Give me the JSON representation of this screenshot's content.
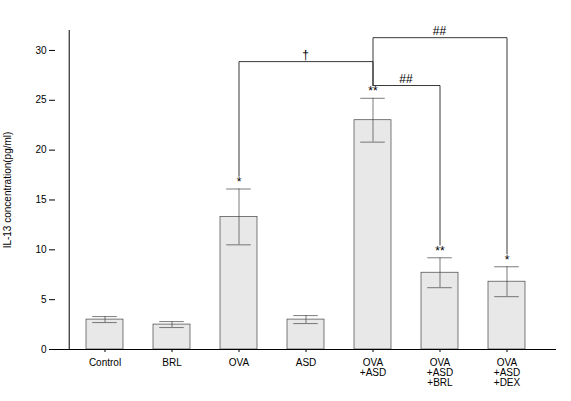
{
  "chart_data": {
    "type": "bar",
    "categories": [
      "Control",
      "BRL",
      "OVA",
      "ASD",
      "OVA\n+ASD",
      "OVA\n+ASD\n+BRL",
      "OVA\n+ASD\n+DEX"
    ],
    "values": [
      3.0,
      2.5,
      13.3,
      3.0,
      23.0,
      7.7,
      6.8
    ],
    "errors": [
      0.3,
      0.3,
      2.8,
      0.4,
      2.2,
      1.5,
      1.5
    ],
    "significance_labels": [
      null,
      null,
      "*",
      null,
      "**",
      "**",
      "*"
    ],
    "annotations": [
      {
        "text": "†",
        "from": "OVA",
        "to": "OVA\n+ASD"
      },
      {
        "text": "##",
        "from": "OVA\n+ASD",
        "to": "OVA\n+ASD\n+BRL"
      },
      {
        "text": "##",
        "from": "OVA\n+ASD",
        "to": "OVA\n+ASD\n+DEX"
      }
    ],
    "color": "#e8e8e8",
    "ylabel": "IL-13 concentration(pg/ml)",
    "ylim": [
      0,
      32
    ],
    "yticks": [
      0,
      5,
      10,
      15,
      20,
      25,
      30
    ],
    "grid": false
  }
}
